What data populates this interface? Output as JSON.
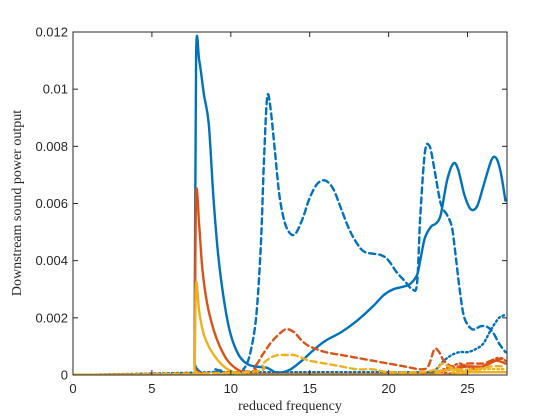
{
  "chart_data": {
    "type": "line",
    "title": "",
    "xlabel": "reduced frequency",
    "ylabel": "Downstream sound power output",
    "xlim": [
      0,
      27.5
    ],
    "ylim": [
      0,
      0.012
    ],
    "xticks": [
      0,
      5,
      10,
      15,
      20,
      25
    ],
    "xtick_labels": [
      "0",
      "5",
      "10",
      "15",
      "20",
      "25"
    ],
    "yticks": [
      0,
      0.002,
      0.004,
      0.006,
      0.008,
      0.01,
      0.012
    ],
    "ytick_labels": [
      "0",
      "0.002",
      "0.004",
      "0.006",
      "0.008",
      "0.01",
      "0.012"
    ],
    "grid": false,
    "legend": "none",
    "series": [
      {
        "color": "#0072BD",
        "dash": "solid",
        "points": [
          [
            0,
            0
          ],
          [
            7.6,
            0
          ],
          [
            7.7,
            0.0005
          ],
          [
            7.8,
            0.0111
          ],
          [
            8.0,
            0.011
          ],
          [
            8.3,
            0.0098
          ],
          [
            8.6,
            0.0088
          ],
          [
            8.9,
            0.0062
          ],
          [
            9.2,
            0.0042
          ],
          [
            9.6,
            0.0025
          ],
          [
            10.0,
            0.0014
          ],
          [
            10.5,
            0.0007
          ],
          [
            11.0,
            0.0004
          ],
          [
            11.5,
            0.0003
          ],
          [
            12.3,
            0.00025
          ],
          [
            12.8,
            0.0001
          ],
          [
            13.3,
            0.0001
          ],
          [
            13.8,
            0.0002
          ],
          [
            14.5,
            0.0005
          ],
          [
            15.3,
            0.0009
          ],
          [
            16.0,
            0.0012
          ],
          [
            17.0,
            0.0015
          ],
          [
            18.0,
            0.0019
          ],
          [
            19.0,
            0.0024
          ],
          [
            19.7,
            0.0028
          ],
          [
            20.3,
            0.003
          ],
          [
            21.0,
            0.0031
          ],
          [
            21.4,
            0.0032
          ],
          [
            21.8,
            0.0035
          ],
          [
            22.0,
            0.004
          ],
          [
            22.3,
            0.0048
          ],
          [
            22.7,
            0.0052
          ],
          [
            23.0,
            0.0053
          ],
          [
            23.3,
            0.0056
          ],
          [
            23.7,
            0.0068
          ],
          [
            24.1,
            0.0074
          ],
          [
            24.4,
            0.0072
          ],
          [
            24.8,
            0.0063
          ],
          [
            25.2,
            0.0058
          ],
          [
            25.6,
            0.0059
          ],
          [
            26.0,
            0.0066
          ],
          [
            26.5,
            0.0075
          ],
          [
            26.8,
            0.0076
          ],
          [
            27.1,
            0.0071
          ],
          [
            27.4,
            0.0061
          ]
        ]
      },
      {
        "color": "#0072BD",
        "dash": "dashed",
        "points": [
          [
            0,
            0
          ],
          [
            10.2,
            0
          ],
          [
            10.8,
            0.0002
          ],
          [
            11.2,
            0.0007
          ],
          [
            11.6,
            0.002
          ],
          [
            11.9,
            0.0045
          ],
          [
            12.1,
            0.0075
          ],
          [
            12.3,
            0.0097
          ],
          [
            12.5,
            0.0094
          ],
          [
            12.8,
            0.0078
          ],
          [
            13.1,
            0.0062
          ],
          [
            13.5,
            0.0052
          ],
          [
            14.0,
            0.0049
          ],
          [
            14.5,
            0.0054
          ],
          [
            15.0,
            0.0062
          ],
          [
            15.5,
            0.0067
          ],
          [
            16.0,
            0.0068
          ],
          [
            16.5,
            0.0065
          ],
          [
            17.0,
            0.0058
          ],
          [
            17.5,
            0.0051
          ],
          [
            18.0,
            0.0046
          ],
          [
            18.5,
            0.0043
          ],
          [
            19.5,
            0.0042
          ],
          [
            20.0,
            0.004
          ],
          [
            20.5,
            0.0036
          ],
          [
            21.0,
            0.0033
          ],
          [
            21.5,
            0.003
          ],
          [
            21.8,
            0.0032
          ],
          [
            22.0,
            0.0055
          ],
          [
            22.3,
            0.0078
          ],
          [
            22.6,
            0.008
          ],
          [
            22.9,
            0.0072
          ],
          [
            23.3,
            0.006
          ],
          [
            23.7,
            0.0056
          ],
          [
            24.0,
            0.0052
          ],
          [
            24.2,
            0.0044
          ],
          [
            24.5,
            0.003
          ],
          [
            24.8,
            0.002
          ],
          [
            25.3,
            0.0016
          ],
          [
            25.8,
            0.0017
          ],
          [
            26.2,
            0.0017
          ],
          [
            26.6,
            0.0015
          ],
          [
            27.0,
            0.0011
          ],
          [
            27.4,
            0.0008
          ]
        ]
      },
      {
        "color": "#0072BD",
        "dash": "dotted",
        "points": [
          [
            0,
            0
          ],
          [
            8.7,
            0.0001
          ],
          [
            9.0,
            0.0002
          ],
          [
            9.5,
            0.0001
          ],
          [
            10.0,
            0.0001
          ],
          [
            22.0,
            0.0001
          ],
          [
            22.5,
            0.0001
          ],
          [
            23.0,
            0.0002
          ],
          [
            23.5,
            0.0005
          ],
          [
            24.0,
            0.0007
          ],
          [
            24.5,
            0.0008
          ],
          [
            25.0,
            0.0008
          ],
          [
            25.5,
            0.0009
          ],
          [
            26.0,
            0.0011
          ],
          [
            26.5,
            0.0016
          ],
          [
            27.0,
            0.002
          ],
          [
            27.4,
            0.0021
          ]
        ]
      },
      {
        "color": "#D95319",
        "dash": "solid",
        "points": [
          [
            0,
            0
          ],
          [
            7.6,
            0
          ],
          [
            7.7,
            0.0003
          ],
          [
            7.8,
            0.0063
          ],
          [
            8.0,
            0.0052
          ],
          [
            8.2,
            0.0037
          ],
          [
            8.5,
            0.0025
          ],
          [
            8.9,
            0.0016
          ],
          [
            9.3,
            0.001
          ],
          [
            9.8,
            0.0005
          ],
          [
            10.4,
            0.0002
          ],
          [
            11.0,
            8e-05
          ],
          [
            12.0,
            3e-05
          ],
          [
            22.0,
            3e-05
          ],
          [
            23.0,
            0.0001
          ],
          [
            24.0,
            0.0002
          ],
          [
            25.0,
            0.0003
          ],
          [
            26.0,
            0.0003
          ],
          [
            26.8,
            0.0005
          ],
          [
            27.4,
            0.0004
          ]
        ]
      },
      {
        "color": "#D95319",
        "dash": "dashed",
        "points": [
          [
            0,
            0
          ],
          [
            10.5,
            0.0001
          ],
          [
            11.5,
            0.0003
          ],
          [
            12.0,
            0.0007
          ],
          [
            12.5,
            0.0011
          ],
          [
            13.0,
            0.0014
          ],
          [
            13.5,
            0.0016
          ],
          [
            14.0,
            0.0015
          ],
          [
            14.5,
            0.0012
          ],
          [
            15.0,
            0.001
          ],
          [
            16.0,
            0.0008
          ],
          [
            17.0,
            0.0007
          ],
          [
            18.0,
            0.0006
          ],
          [
            19.0,
            0.0005
          ],
          [
            20.0,
            0.0004
          ],
          [
            21.0,
            0.0003
          ],
          [
            22.0,
            0.0002
          ],
          [
            22.5,
            0.0003
          ],
          [
            22.9,
            0.0009
          ],
          [
            23.2,
            0.0008
          ],
          [
            23.5,
            0.0005
          ],
          [
            24.0,
            0.0003
          ],
          [
            24.5,
            0.0003
          ],
          [
            25.0,
            0.0004
          ],
          [
            26.0,
            0.0004
          ],
          [
            26.5,
            0.0005
          ],
          [
            27.4,
            0.0006
          ]
        ]
      },
      {
        "color": "#D95319",
        "dash": "dotted",
        "points": [
          [
            0,
            0
          ],
          [
            22.5,
            0
          ],
          [
            23.0,
            0.0001
          ],
          [
            23.5,
            0.0002
          ],
          [
            24.0,
            0.0003
          ],
          [
            24.5,
            0.0004
          ],
          [
            25.0,
            0.0003
          ],
          [
            25.5,
            0.0002
          ],
          [
            26.0,
            0.0003
          ],
          [
            26.5,
            0.0005
          ],
          [
            27.0,
            0.0006
          ],
          [
            27.4,
            0.0005
          ]
        ]
      },
      {
        "color": "#EDB120",
        "dash": "solid",
        "points": [
          [
            0,
            0
          ],
          [
            7.6,
            0
          ],
          [
            7.7,
            0.0002
          ],
          [
            7.8,
            0.0032
          ],
          [
            8.0,
            0.0022
          ],
          [
            8.3,
            0.0014
          ],
          [
            8.7,
            0.0009
          ],
          [
            9.2,
            0.0005
          ],
          [
            9.8,
            0.0002
          ],
          [
            10.5,
            5e-05
          ],
          [
            11.5,
            0
          ],
          [
            22.5,
            0
          ],
          [
            23.0,
            0.0001
          ],
          [
            24.0,
            0.0002
          ],
          [
            25.0,
            0.0001
          ],
          [
            26.0,
            0.0001
          ],
          [
            27.4,
            0.0001
          ]
        ]
      },
      {
        "color": "#EDB120",
        "dash": "dashed",
        "points": [
          [
            0,
            0
          ],
          [
            11.0,
            0.0001
          ],
          [
            12.0,
            0.0004
          ],
          [
            12.5,
            0.0006
          ],
          [
            13.0,
            0.0007
          ],
          [
            13.5,
            0.0007
          ],
          [
            14.0,
            0.0007
          ],
          [
            14.5,
            0.0006
          ],
          [
            15.0,
            0.0005
          ],
          [
            16.0,
            0.0004
          ],
          [
            17.0,
            0.0003
          ],
          [
            18.0,
            0.0002
          ],
          [
            19.0,
            0.0002
          ],
          [
            20.0,
            0.0001
          ],
          [
            22.0,
            0.0001
          ],
          [
            23.0,
            0.0002
          ],
          [
            23.4,
            0.0004
          ],
          [
            23.8,
            0.0003
          ],
          [
            24.5,
            0.0002
          ],
          [
            25.5,
            0.0002
          ],
          [
            26.5,
            0.0003
          ],
          [
            27.4,
            0.0003
          ]
        ]
      },
      {
        "color": "#EDB120",
        "dash": "dotted",
        "points": [
          [
            0,
            0
          ],
          [
            23.0,
            0
          ],
          [
            24.0,
            0.0001
          ],
          [
            25.0,
            0.0001
          ],
          [
            26.0,
            0.0002
          ],
          [
            27.4,
            0.0002
          ]
        ]
      }
    ]
  }
}
